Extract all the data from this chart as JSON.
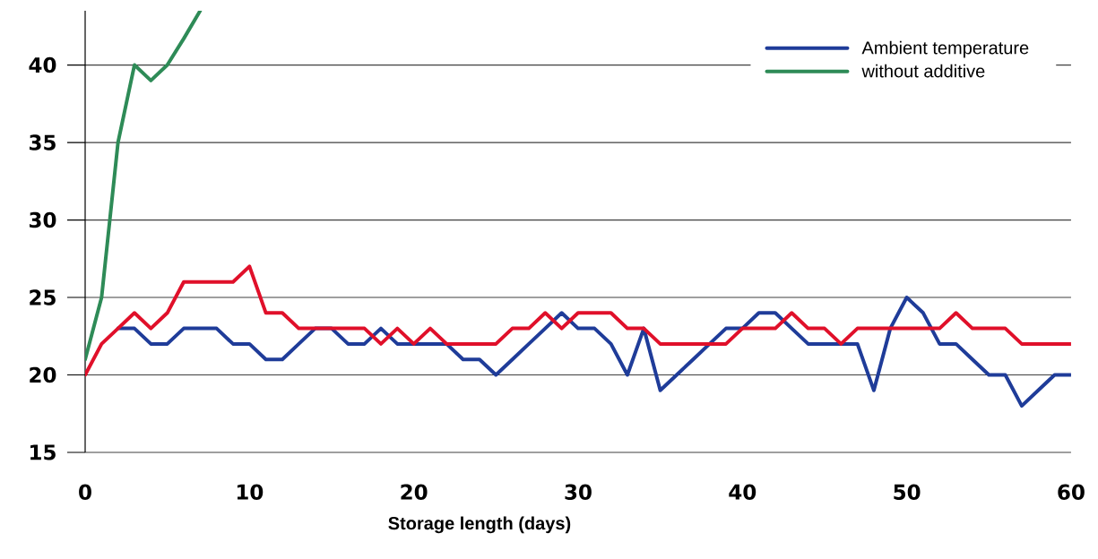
{
  "chart_data": {
    "type": "line",
    "xlabel": "Storage length (days)",
    "x": [
      0,
      1,
      2,
      3,
      4,
      5,
      6,
      7,
      8,
      9,
      10,
      11,
      12,
      13,
      14,
      15,
      16,
      17,
      18,
      19,
      20,
      21,
      22,
      23,
      24,
      25,
      26,
      27,
      28,
      29,
      30,
      31,
      32,
      33,
      34,
      35,
      36,
      37,
      38,
      39,
      40,
      41,
      42,
      43,
      44,
      45,
      46,
      47,
      48,
      49,
      50,
      51,
      52,
      53,
      54,
      55,
      56,
      57,
      58,
      59,
      60
    ],
    "series": [
      {
        "name": "Ambient temperature",
        "color": "#1f3c99",
        "values": [
          null,
          null,
          23,
          23,
          22,
          22,
          23,
          23,
          23,
          22,
          22,
          21,
          21,
          22,
          23,
          23,
          22,
          22,
          23,
          22,
          22,
          22,
          22,
          21,
          21,
          20,
          21,
          22,
          23,
          24,
          23,
          23,
          22,
          20,
          23,
          19,
          20,
          21,
          22,
          23,
          23,
          24,
          24,
          23,
          22,
          22,
          22,
          22,
          19,
          23,
          25,
          24,
          22,
          22,
          21,
          20,
          20,
          18,
          19,
          20,
          20
        ]
      },
      {
        "name": "without additive",
        "color": "#2e8b57",
        "values": [
          21,
          25,
          35,
          40,
          39,
          40,
          41.7,
          43.5,
          null,
          null,
          null,
          null,
          null,
          null,
          null,
          null,
          null,
          null,
          null,
          null,
          null,
          null,
          null,
          null,
          null,
          null,
          null,
          null,
          null,
          null,
          null,
          null,
          null,
          null,
          null,
          null,
          null,
          null,
          null,
          null,
          null,
          null,
          null,
          null,
          null,
          null,
          null,
          null,
          null,
          null,
          null,
          null,
          null,
          null,
          null,
          null,
          null,
          null,
          null,
          null,
          null
        ]
      },
      {
        "color": "#e0102a",
        "values": [
          20,
          22,
          23,
          24,
          23,
          24,
          26,
          26,
          26,
          26,
          27,
          24,
          24,
          23,
          23,
          23,
          23,
          23,
          22,
          23,
          22,
          23,
          22,
          22,
          22,
          22,
          23,
          23,
          24,
          23,
          24,
          24,
          24,
          23,
          23,
          22,
          22,
          22,
          22,
          22,
          23,
          23,
          23,
          24,
          23,
          23,
          22,
          23,
          23,
          23,
          23,
          23,
          23,
          24,
          23,
          23,
          23,
          22,
          22,
          22,
          22
        ]
      }
    ],
    "xlim": [
      0,
      60
    ],
    "ylim": [
      15,
      43.5
    ],
    "xticks": [
      0,
      10,
      20,
      30,
      40,
      50,
      60
    ],
    "yticks": [
      15,
      20,
      25,
      30,
      35,
      40
    ],
    "grid": "y",
    "legend": "top right",
    "marker": "none",
    "line_style": "solid"
  }
}
